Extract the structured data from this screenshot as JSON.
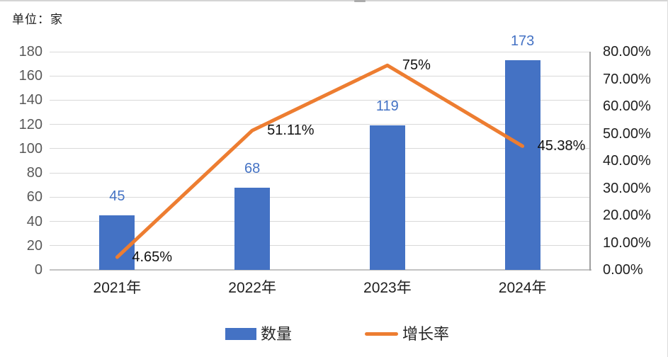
{
  "page": {
    "unit_label": "单位：家"
  },
  "chart_data": {
    "type": "combo",
    "title": "单位：家",
    "categories": [
      "2021年",
      "2022年",
      "2023年",
      "2024年"
    ],
    "series": [
      {
        "name": "数量",
        "type": "bar",
        "axis": "left",
        "values": [
          45,
          68,
          119,
          173
        ],
        "labels": [
          "45",
          "68",
          "119",
          "173"
        ],
        "color": "#4472C4"
      },
      {
        "name": "增长率",
        "type": "line",
        "axis": "right",
        "values": [
          4.65,
          51.11,
          75,
          45.38
        ],
        "labels": [
          "4.65%",
          "51.11%",
          "75%",
          "45.38%"
        ],
        "color": "#ED7D31"
      }
    ],
    "left_axis": {
      "min": 0,
      "max": 180,
      "step": 20,
      "tick_labels": [
        "0",
        "20",
        "40",
        "60",
        "80",
        "100",
        "120",
        "140",
        "160",
        "180"
      ]
    },
    "right_axis": {
      "min": 0,
      "max": 80,
      "step": 10,
      "tick_labels": [
        "0.00%",
        "10.00%",
        "20.00%",
        "30.00%",
        "40.00%",
        "50.00%",
        "60.00%",
        "70.00%",
        "80.00%"
      ]
    },
    "grid": true,
    "legend": {
      "position": "bottom",
      "entries": [
        "数量",
        "增长率"
      ]
    },
    "colors": {
      "bar": "#4472C4",
      "line": "#ED7D31",
      "gridline": "#d9d9d9",
      "bar_label_text": "#4472C4",
      "pct_label_text": "#111111",
      "left_tick_text": "#595959",
      "right_tick_text": "#1f1f1f"
    }
  }
}
